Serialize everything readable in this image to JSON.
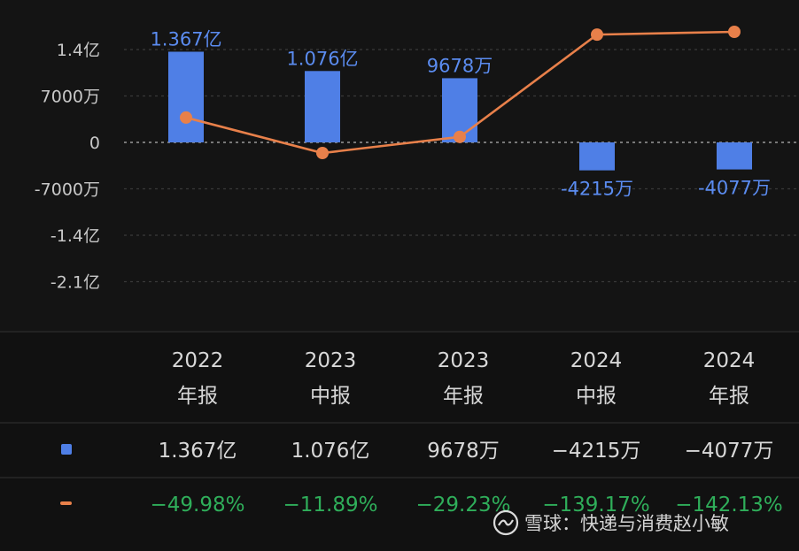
{
  "chart_data": {
    "type": "bar",
    "categories": [
      [
        "2022",
        "年报"
      ],
      [
        "2023",
        "中报"
      ],
      [
        "2023",
        "年报"
      ],
      [
        "2024",
        "中报"
      ],
      [
        "2024",
        "年报"
      ]
    ],
    "series": [
      {
        "type": "bar",
        "values": [
          136700000,
          107600000,
          96780000,
          -42150000,
          -40770000
        ],
        "value_labels": [
          "1.367亿",
          "1.076亿",
          "9678万",
          "-4215万",
          "-4077万"
        ],
        "table_labels": [
          "1.367亿",
          "1.076亿",
          "9678万",
          "−4215万",
          "−4077万"
        ],
        "color": "#4f7fe6"
      },
      {
        "type": "line",
        "values": [
          -49.98,
          -11.89,
          -29.23,
          -139.17,
          -142.13
        ],
        "table_labels": [
          "−49.98%",
          "−11.89%",
          "−29.23%",
          "−139.17%",
          "−142.13%"
        ],
        "color": "#e8804a"
      }
    ],
    "y_ticks": [
      {
        "value": 140000000,
        "label": "1.4亿"
      },
      {
        "value": 70000000,
        "label": "7000万"
      },
      {
        "value": 0,
        "label": "0"
      },
      {
        "value": -70000000,
        "label": "-7000万"
      },
      {
        "value": -140000000,
        "label": "-1.4亿"
      },
      {
        "value": -210000000,
        "label": "-2.1亿"
      }
    ],
    "ylim": [
      -210000000,
      140000000
    ],
    "grid": true,
    "legend": "table-below"
  },
  "watermark": {
    "logo_icon": "snowball-logo-icon",
    "text": "雪球：快递与消费赵小敏"
  }
}
